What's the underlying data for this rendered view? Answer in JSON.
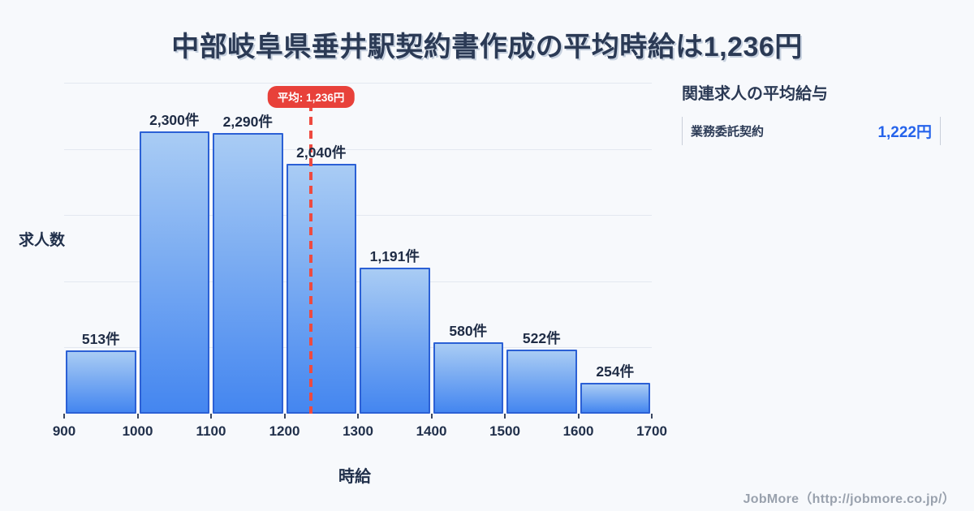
{
  "title": "中部岐阜県垂井駅契約書作成の平均時給は1,236円",
  "chart_data": {
    "type": "bar",
    "subtype": "histogram",
    "title": "中部岐阜県垂井駅契約書作成の平均時給は1,236円",
    "bin_edges": [
      900,
      1000,
      1100,
      1200,
      1300,
      1400,
      1500,
      1600,
      1700
    ],
    "categories": [
      "900-1000",
      "1000-1100",
      "1100-1200",
      "1200-1300",
      "1300-1400",
      "1400-1500",
      "1500-1600",
      "1600-1700"
    ],
    "values": [
      513,
      2300,
      2290,
      2040,
      1191,
      580,
      522,
      254
    ],
    "bar_labels": [
      "513件",
      "2,300件",
      "2,290件",
      "2,040件",
      "1,191件",
      "580件",
      "522件",
      "254件"
    ],
    "x_ticks": [
      "900",
      "1000",
      "1100",
      "1200",
      "1300",
      "1400",
      "1500",
      "1600",
      "1700"
    ],
    "xlabel": "時給",
    "ylabel": "求人数",
    "ylim": [
      0,
      2700
    ],
    "grid": "horizontal",
    "legend": "none",
    "average": 1236,
    "average_label": "平均: 1,236円",
    "colors": {
      "bar_gradient_top": "#a9ccf4",
      "bar_gradient_bottom": "#4486f0",
      "bar_border": "#2b60d5",
      "average_line": "#ee4a40",
      "average_badge_bg": "#e8413a",
      "average_badge_text": "#ffffff",
      "gridline": "#e3e8f0",
      "text_dark": "#2b3a55",
      "background": "#f7f9fc"
    }
  },
  "side_panel": {
    "heading": "関連求人の平均給与",
    "rows": [
      {
        "label": "業務委託契約",
        "value": "1,222円"
      }
    ],
    "value_color": "#2563eb"
  },
  "footer": {
    "credit": "JobMore（http://jobmore.co.jp/）"
  }
}
